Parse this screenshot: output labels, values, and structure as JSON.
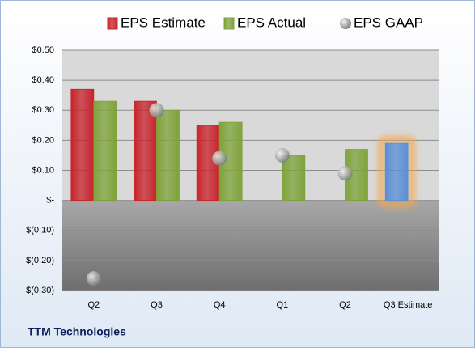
{
  "chart_data": {
    "type": "bar",
    "title": "TTM Technologies",
    "categories": [
      "Q2",
      "Q3",
      "Q4",
      "Q1",
      "Q2",
      "Q3 Estimate"
    ],
    "series": [
      {
        "name": "EPS Estimate",
        "color": "#c8232b",
        "values": [
          0.37,
          0.33,
          0.25,
          null,
          null,
          0.19
        ],
        "colors": [
          "#c8232b",
          "#c8232b",
          "#c8232b",
          null,
          null,
          "#5b8fd6"
        ],
        "glow_colors": [
          null,
          null,
          null,
          null,
          null,
          "#f5a54a"
        ]
      },
      {
        "name": "EPS Actual",
        "color": "#7fa33a",
        "values": [
          0.33,
          0.3,
          0.26,
          0.15,
          0.17,
          null
        ]
      },
      {
        "name": "EPS GAAP",
        "color": "#9a9a9a",
        "type": "scatter",
        "values": [
          -0.26,
          0.3,
          0.14,
          0.15,
          0.09,
          null
        ]
      }
    ],
    "ylim": [
      -0.3,
      0.5
    ],
    "yticks": [
      {
        "value": 0.5,
        "label": "$0.50"
      },
      {
        "value": 0.4,
        "label": "$0.40"
      },
      {
        "value": 0.3,
        "label": "$0.30"
      },
      {
        "value": 0.2,
        "label": "$0.20"
      },
      {
        "value": 0.1,
        "label": "$0.10"
      },
      {
        "value": 0,
        "label": "$-"
      },
      {
        "value": -0.1,
        "label": "$(0.10)"
      },
      {
        "value": -0.2,
        "label": "$(0.20)"
      },
      {
        "value": -0.3,
        "label": "$(0.30)"
      }
    ],
    "grid": true
  }
}
